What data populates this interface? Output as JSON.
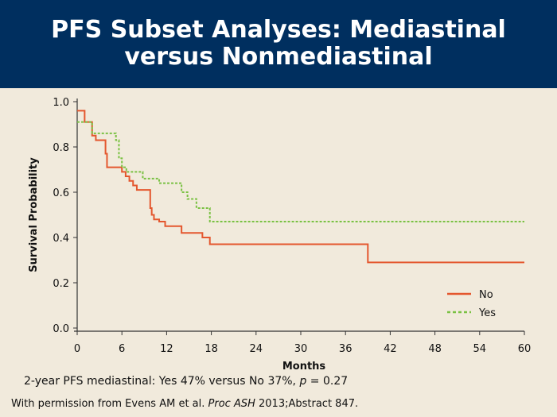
{
  "header": {
    "title": "PFS Subset Analyses: Mediastinal versus Nonmediastinal"
  },
  "chart_data": {
    "type": "line",
    "xlabel": "Months",
    "ylabel": "Survival Probability",
    "xlim": [
      0,
      60
    ],
    "ylim": [
      0,
      1
    ],
    "xticks": [
      "0",
      "6",
      "12",
      "18",
      "24",
      "30",
      "36",
      "42",
      "48",
      "54",
      "60"
    ],
    "yticks": [
      "0.0",
      "0.2",
      "0.4",
      "0.6",
      "0.8",
      "1.0"
    ],
    "legend_position": "bottom-right",
    "grid": false,
    "series": [
      {
        "name": "No",
        "color": "#e4572e",
        "style": "solid",
        "steps": [
          [
            0,
            0.96
          ],
          [
            1.0,
            0.91
          ],
          [
            2.0,
            0.85
          ],
          [
            2.5,
            0.83
          ],
          [
            3.5,
            0.83
          ],
          [
            3.8,
            0.77
          ],
          [
            4.0,
            0.71
          ],
          [
            5.5,
            0.71
          ],
          [
            6.0,
            0.69
          ],
          [
            6.5,
            0.67
          ],
          [
            7.0,
            0.65
          ],
          [
            7.5,
            0.63
          ],
          [
            8.0,
            0.61
          ],
          [
            9.8,
            0.61
          ],
          [
            9.8,
            0.53
          ],
          [
            10.0,
            0.5
          ],
          [
            10.3,
            0.48
          ],
          [
            11.0,
            0.47
          ],
          [
            11.8,
            0.45
          ],
          [
            14.0,
            0.42
          ],
          [
            16.8,
            0.4
          ],
          [
            17.8,
            0.37
          ],
          [
            39.0,
            0.29
          ],
          [
            60,
            0.29
          ]
        ]
      },
      {
        "name": "Yes",
        "color": "#7ac143",
        "style": "dashed",
        "steps": [
          [
            0,
            0.91
          ],
          [
            2.0,
            0.86
          ],
          [
            5.2,
            0.83
          ],
          [
            5.6,
            0.75
          ],
          [
            6.0,
            0.71
          ],
          [
            6.6,
            0.69
          ],
          [
            8.8,
            0.66
          ],
          [
            11.0,
            0.64
          ],
          [
            14.0,
            0.6
          ],
          [
            14.8,
            0.57
          ],
          [
            16.0,
            0.53
          ],
          [
            17.8,
            0.47
          ],
          [
            60,
            0.47
          ]
        ]
      }
    ]
  },
  "footnote": {
    "prefix": "2-year PFS mediastinal: Yes 47% versus No 37%, ",
    "p_label": "p",
    "suffix": " = 0.27"
  },
  "credit": {
    "prefix": "With permission from Evens AM et al. ",
    "journal": "Proc ASH",
    "suffix": " 2013;Abstract 847."
  }
}
